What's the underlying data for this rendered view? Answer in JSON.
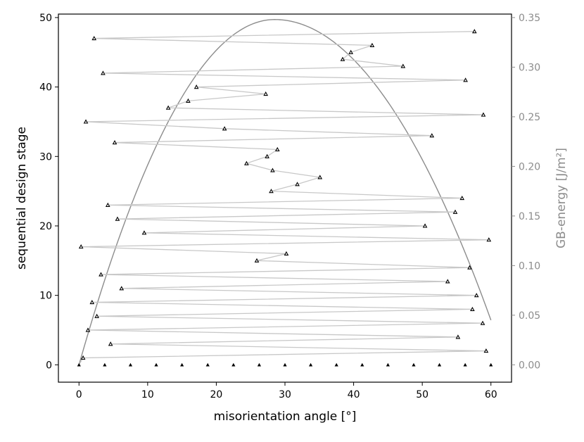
{
  "chart_data": {
    "type": "scatter",
    "title": "",
    "xlabel": "misorientation angle [°]",
    "ylabel": "sequential design stage",
    "y2label": "GB-energy [J/m²]",
    "xlim": [
      -3,
      63
    ],
    "ylim": [
      -2.5,
      50.5
    ],
    "y2lim": [
      -0.0175,
      0.3535
    ],
    "xticks": [
      0,
      10,
      20,
      30,
      40,
      50,
      60
    ],
    "yticks": [
      0,
      10,
      20,
      30,
      40,
      50
    ],
    "y2ticks": [
      0.0,
      0.05,
      0.1,
      0.15,
      0.2,
      0.25,
      0.3,
      0.35
    ],
    "grid": false,
    "colors": {
      "marker": "#000000",
      "path": "#c8c8c8",
      "energy_curve": "#8c8c8c",
      "right_axis": "#8c8c8c"
    },
    "initial_design": {
      "x": [
        0,
        3.75,
        7.5,
        11.25,
        15,
        18.75,
        22.5,
        26.25,
        30,
        33.75,
        37.5,
        41.25,
        45,
        48.75,
        52.5,
        56.25,
        60
      ],
      "y": [
        0,
        0,
        0,
        0,
        0,
        0,
        0,
        0,
        0,
        0,
        0,
        0,
        0,
        0,
        0,
        0,
        0
      ]
    },
    "sequential_path": {
      "x": [
        0.6,
        59.3,
        4.6,
        55.2,
        1.3,
        58.8,
        2.6,
        57.3,
        1.9,
        57.9,
        6.2,
        53.7,
        3.2,
        56.9,
        25.9,
        30.2,
        0.3,
        59.7,
        9.5,
        50.4,
        5.6,
        54.8,
        4.2,
        55.8,
        28.0,
        31.8,
        35.1,
        28.2,
        24.4,
        27.4,
        28.9,
        5.2,
        51.4,
        21.2,
        1.0,
        58.9,
        13.0,
        15.9,
        27.2,
        17.1,
        56.3,
        3.5,
        47.2,
        38.4,
        39.6,
        42.7,
        2.2,
        57.6
      ],
      "y": [
        1,
        2,
        3,
        4,
        5,
        6,
        7,
        8,
        9,
        10,
        11,
        12,
        13,
        14,
        15,
        16,
        17,
        18,
        19,
        20,
        21,
        22,
        23,
        24,
        25,
        26,
        27,
        28,
        29,
        30,
        31,
        32,
        33,
        34,
        35,
        36,
        37,
        38,
        39,
        40,
        41,
        42,
        43,
        44,
        45,
        46,
        47,
        48
      ]
    },
    "energy_curve": {
      "x_range": [
        0,
        60
      ],
      "peak_angle": 28.5,
      "peak_energy": 0.348,
      "end_energy": 0.045
    }
  }
}
